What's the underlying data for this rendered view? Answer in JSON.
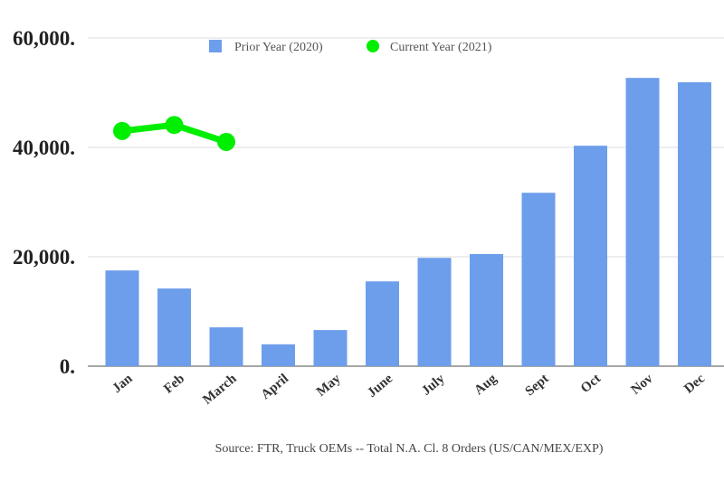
{
  "chart_data": {
    "type": "bar",
    "categories": [
      "Jan",
      "Feb",
      "March",
      "April",
      "May",
      "June",
      "July",
      "Aug",
      "Sept",
      "Oct",
      "Nov",
      "Dec"
    ],
    "series": [
      {
        "name": "Prior Year (2020)",
        "type": "bar",
        "color": "#6d9eeb",
        "values": [
          17500,
          14200,
          7100,
          4000,
          6600,
          15500,
          19800,
          20500,
          31700,
          40300,
          52700,
          51900
        ]
      },
      {
        "name": "Current Year (2021)",
        "type": "line",
        "color": "#00ee00",
        "values": [
          43000,
          44100,
          41000,
          null,
          null,
          null,
          null,
          null,
          null,
          null,
          null,
          null
        ]
      }
    ],
    "yticks": [
      "0.",
      "20,000.",
      "40,000.",
      "60,000."
    ],
    "ytick_values": [
      0,
      20000,
      40000,
      60000
    ],
    "ylim": [
      0,
      60000
    ],
    "grid": true,
    "legend": "top",
    "source": "Source: FTR, Truck OEMs -- Total N.A. Cl. 8 Orders (US/CAN/MEX/EXP)"
  }
}
